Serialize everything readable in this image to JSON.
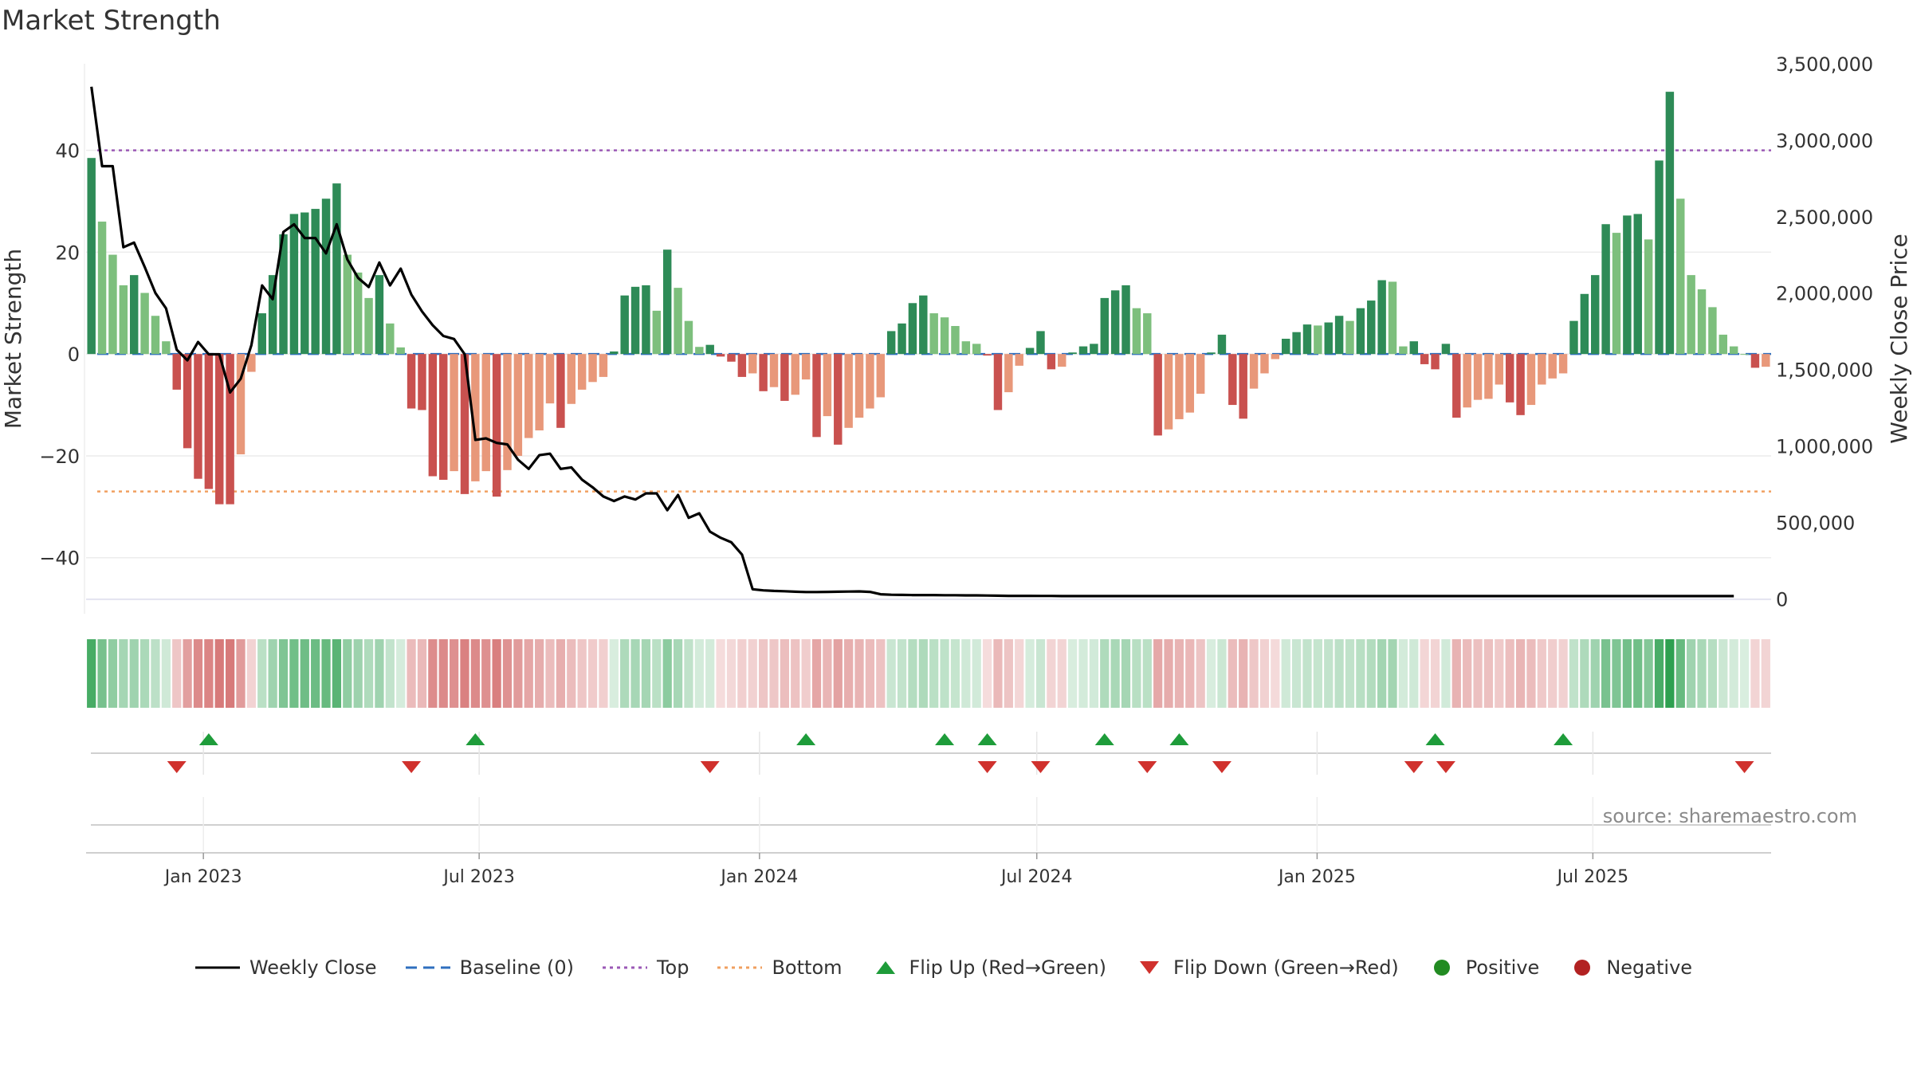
{
  "chart_data": {
    "type": "bar",
    "title": "Market Strength",
    "ylabel": "Market Strength",
    "y2label": "Weekly Close Price",
    "ylim": [
      -51,
      57
    ],
    "y2lim": [
      -97000,
      3500000
    ],
    "yticks": [
      40,
      20,
      0,
      -20,
      -40
    ],
    "yticklabels": [
      "40",
      "20",
      "0",
      "−20",
      "−40"
    ],
    "y2ticks": [
      3500000,
      3000000,
      2500000,
      2000000,
      1500000,
      1000000,
      500000,
      0
    ],
    "y2ticklabels": [
      "3,500,000",
      "3,000,000",
      "2,500,000",
      "2,000,000",
      "1,500,000",
      "1,000,000",
      "500,000",
      "0"
    ],
    "top_line": 40,
    "bottom_line": -27,
    "x_start": "2022-10-16",
    "xticklabels": [
      {
        "label": "Jan 2023",
        "date": "2023-01-01"
      },
      {
        "label": "Jul 2023",
        "date": "2023-07-01"
      },
      {
        "label": "Jan 2024",
        "date": "2024-01-01"
      },
      {
        "label": "Jul 2024",
        "date": "2024-07-01"
      },
      {
        "label": "Jan 2025",
        "date": "2025-01-01"
      },
      {
        "label": "Jul 2025",
        "date": "2025-07-01"
      }
    ],
    "strength": [
      38.5,
      26,
      19.5,
      13.5,
      15.5,
      12,
      7.5,
      2.5,
      -7,
      -18.5,
      -24.5,
      -26.5,
      -29.5,
      -29.5,
      -19.7,
      -3.5,
      8,
      15.5,
      23.5,
      27.5,
      27.8,
      28.5,
      30.5,
      33.5,
      19.5,
      16,
      11,
      15.5,
      6,
      1.3,
      -10.7,
      -11,
      -24,
      -24.7,
      -23,
      -27.5,
      -25,
      -23,
      -28,
      -22.8,
      -20,
      -16.5,
      -15,
      -9.7,
      -14.5,
      -9.8,
      -7,
      -5.5,
      -4.5,
      0.5,
      11.5,
      13.2,
      13.5,
      8.5,
      20.5,
      13,
      6.5,
      1.4,
      1.8,
      -0.5,
      -1.5,
      -4.5,
      -3.8,
      -7.3,
      -6.5,
      -9.2,
      -8,
      -5,
      -16.3,
      -12.2,
      -17.8,
      -14.5,
      -12.5,
      -10.7,
      -8.5,
      4.5,
      6,
      10,
      11.5,
      8,
      7.2,
      5.5,
      2.5,
      2,
      -0.3,
      -11,
      -7.5,
      -2.3,
      1.2,
      4.5,
      -3,
      -2.5,
      0.3,
      1.5,
      2,
      11,
      12.5,
      13.5,
      9,
      8,
      -16,
      -14.8,
      -12.8,
      -11.5,
      -7.8,
      0.3,
      3.8,
      -10,
      -12.7,
      -6.8,
      -3.8,
      -1,
      3,
      4.3,
      5.8,
      5.6,
      6.2,
      7.5,
      6.5,
      9,
      10.5,
      14.5,
      14.2,
      1.5,
      2.5,
      -2,
      -3,
      2,
      -12.5,
      -10.5,
      -9,
      -8.8,
      -6,
      -9.5,
      -12,
      -10,
      -6,
      -4.8,
      -3.8,
      6.5,
      11.8,
      15.5,
      25.5,
      23.8,
      27.2,
      27.5,
      22.5,
      38,
      51.5,
      30.5,
      15.5,
      12.7,
      9.2,
      3.8,
      1.5,
      0,
      -2.7,
      -2.5
    ],
    "weekly_close": [
      3350000,
      2830000,
      2830000,
      2300000,
      2330000,
      2170000,
      2000000,
      1900000,
      1630000,
      1560000,
      1680000,
      1600000,
      1600000,
      1350000,
      1440000,
      1660000,
      2050000,
      1960000,
      2400000,
      2450000,
      2360000,
      2360000,
      2260000,
      2450000,
      2220000,
      2100000,
      2040000,
      2200000,
      2050000,
      2160000,
      1990000,
      1880000,
      1790000,
      1720000,
      1700000,
      1600000,
      1040000,
      1050000,
      1020000,
      1010000,
      910000,
      850000,
      940000,
      950000,
      850000,
      860000,
      780000,
      730000,
      670000,
      640000,
      670000,
      650000,
      690000,
      690000,
      580000,
      680000,
      530000,
      560000,
      440000,
      400000,
      370000,
      290000,
      63000,
      56000,
      52000,
      50000,
      47000,
      45000,
      45000,
      46000,
      47000,
      48000,
      49000,
      46000,
      30000,
      27000,
      26000,
      25000,
      25000,
      25000,
      24000,
      24000,
      23000,
      23000,
      22000,
      21000,
      20000,
      20000,
      20000,
      19000,
      19000,
      18000,
      18000,
      18000,
      18000,
      18000,
      18000,
      18000,
      18000,
      18000,
      18000,
      18000,
      18000,
      18000,
      18000,
      18000,
      18000,
      18000,
      18000,
      18000,
      18000,
      18000,
      18000,
      18000,
      18000,
      18000,
      18000,
      18000,
      18000,
      18000,
      18000,
      18000,
      18000,
      18000,
      18000,
      18000,
      18000,
      18000,
      18000,
      18000,
      18000,
      18000,
      18000,
      18000,
      18000,
      18000,
      18000,
      18000,
      18000,
      18000,
      18000,
      18000,
      18000,
      18000,
      18000,
      18000,
      18000,
      18000,
      18000,
      18000,
      18000,
      18000,
      18000,
      18000,
      18000
    ],
    "flip_up_weeks": [
      11,
      36,
      67,
      80,
      84,
      95,
      102,
      126,
      138
    ],
    "flip_down_weeks": [
      8,
      30,
      58,
      84,
      89,
      99,
      106,
      124,
      127,
      155
    ],
    "colors": {
      "strong_green": "#2e8b57",
      "light_green": "#7dbf7d",
      "strong_red": "#c9514f",
      "light_red": "#e8987a",
      "price_line": "#000000",
      "baseline": "#2f6fbf",
      "top": "#9b59b6",
      "bottom": "#f0a060",
      "flip_up": "#1e9c3a",
      "flip_down": "#d0312d",
      "positive": "#228b22",
      "negative": "#b22222"
    }
  },
  "source": "source: sharemaestro.com",
  "legend": [
    {
      "label": "Weekly Close",
      "marker": "solid-line"
    },
    {
      "label": "Baseline (0)",
      "marker": "dashed-line"
    },
    {
      "label": "Top",
      "marker": "dotted-line-purple"
    },
    {
      "label": "Bottom",
      "marker": "dotted-line-orange"
    },
    {
      "label": "Flip Up (Red→Green)",
      "marker": "triangle-up"
    },
    {
      "label": "Flip Down (Green→Red)",
      "marker": "triangle-down"
    },
    {
      "label": "Positive",
      "marker": "dot-green"
    },
    {
      "label": "Negative",
      "marker": "dot-red"
    }
  ]
}
